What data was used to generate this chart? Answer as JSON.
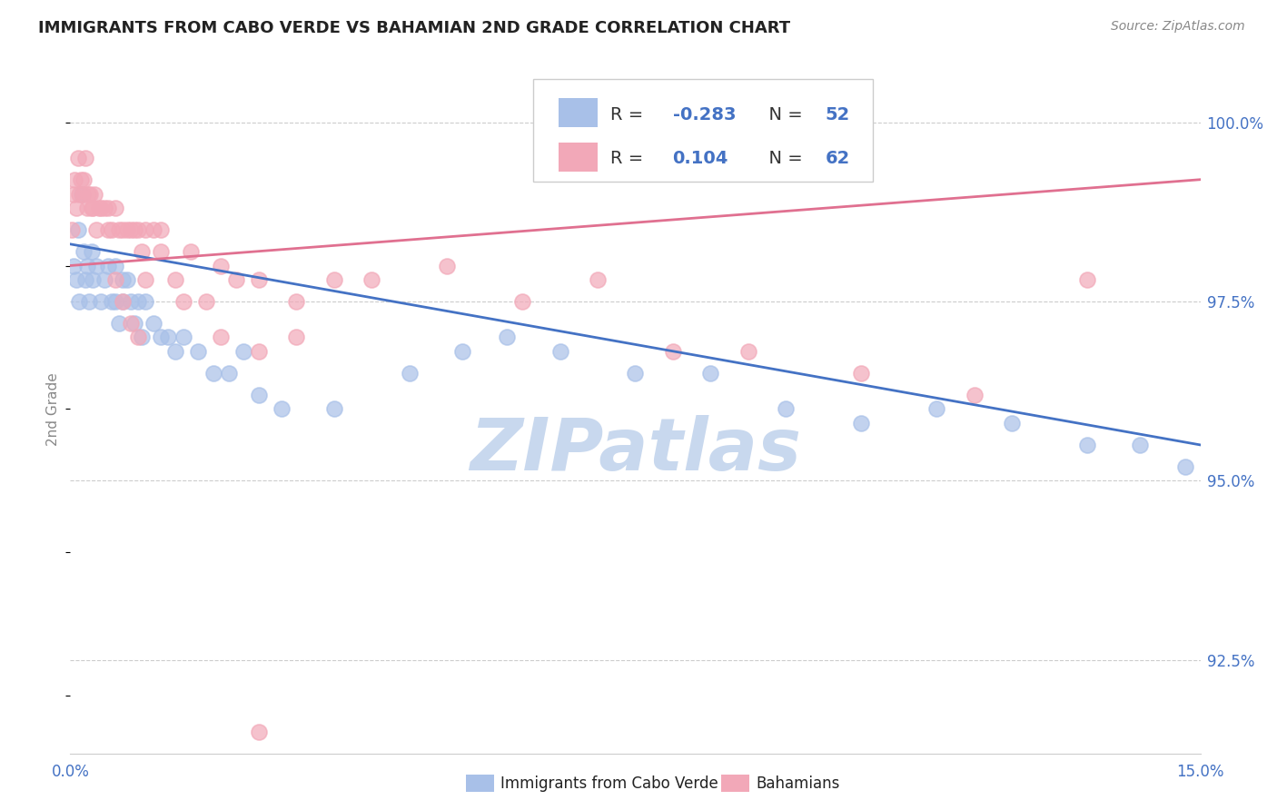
{
  "title": "IMMIGRANTS FROM CABO VERDE VS BAHAMIAN 2ND GRADE CORRELATION CHART",
  "source": "Source: ZipAtlas.com",
  "ylabel": "2nd Grade",
  "yticks": [
    92.5,
    95.0,
    97.5,
    100.0
  ],
  "ytick_labels": [
    "92.5%",
    "95.0%",
    "97.5%",
    "100.0%"
  ],
  "xmin": 0.0,
  "xmax": 15.0,
  "ymin": 91.2,
  "ymax": 100.8,
  "legend_r_blue": "-0.283",
  "legend_n_blue": "52",
  "legend_r_pink": "0.104",
  "legend_n_pink": "62",
  "legend_label_blue": "Immigrants from Cabo Verde",
  "legend_label_pink": "Bahamians",
  "blue_color": "#A8C0E8",
  "pink_color": "#F2A8B8",
  "blue_line_color": "#4472C4",
  "pink_line_color": "#E07090",
  "watermark_color": "#C8D8EE",
  "blue_x": [
    0.05,
    0.08,
    0.1,
    0.12,
    0.15,
    0.18,
    0.2,
    0.22,
    0.25,
    0.28,
    0.3,
    0.35,
    0.4,
    0.45,
    0.5,
    0.55,
    0.6,
    0.65,
    0.7,
    0.75,
    0.8,
    0.85,
    0.9,
    0.95,
    1.0,
    1.1,
    1.2,
    1.3,
    1.4,
    1.5,
    1.7,
    1.9,
    2.1,
    2.3,
    2.5,
    2.8,
    3.5,
    4.5,
    5.2,
    5.8,
    6.5,
    7.5,
    8.5,
    9.5,
    10.5,
    11.5,
    12.5,
    13.5,
    14.2,
    14.8,
    0.6,
    0.7
  ],
  "blue_y": [
    98.0,
    97.8,
    98.5,
    97.5,
    99.0,
    98.2,
    97.8,
    98.0,
    97.5,
    98.2,
    97.8,
    98.0,
    97.5,
    97.8,
    98.0,
    97.5,
    98.0,
    97.2,
    97.5,
    97.8,
    97.5,
    97.2,
    97.5,
    97.0,
    97.5,
    97.2,
    97.0,
    97.0,
    96.8,
    97.0,
    96.8,
    96.5,
    96.5,
    96.8,
    96.2,
    96.0,
    96.0,
    96.5,
    96.8,
    97.0,
    96.8,
    96.5,
    96.5,
    96.0,
    95.8,
    96.0,
    95.8,
    95.5,
    95.5,
    95.2,
    97.5,
    97.8
  ],
  "pink_x": [
    0.02,
    0.04,
    0.06,
    0.08,
    0.1,
    0.12,
    0.14,
    0.16,
    0.18,
    0.2,
    0.22,
    0.24,
    0.26,
    0.28,
    0.3,
    0.32,
    0.35,
    0.38,
    0.4,
    0.45,
    0.5,
    0.55,
    0.6,
    0.65,
    0.7,
    0.75,
    0.8,
    0.85,
    0.9,
    0.95,
    1.0,
    1.1,
    1.2,
    1.4,
    1.6,
    1.8,
    2.0,
    2.2,
    2.5,
    3.0,
    3.5,
    4.0,
    5.0,
    6.0,
    7.0,
    8.0,
    9.0,
    10.5,
    12.0,
    13.5,
    0.5,
    0.6,
    0.7,
    0.8,
    0.9,
    1.0,
    1.2,
    1.5,
    2.0,
    2.5,
    3.0,
    2.5
  ],
  "pink_y": [
    98.5,
    99.0,
    99.2,
    98.8,
    99.5,
    99.0,
    99.2,
    99.0,
    99.2,
    99.5,
    98.8,
    99.0,
    99.0,
    98.8,
    98.8,
    99.0,
    98.5,
    98.8,
    98.8,
    98.8,
    98.8,
    98.5,
    98.8,
    98.5,
    98.5,
    98.5,
    98.5,
    98.5,
    98.5,
    98.2,
    98.5,
    98.5,
    98.5,
    97.8,
    98.2,
    97.5,
    98.0,
    97.8,
    97.8,
    97.5,
    97.8,
    97.8,
    98.0,
    97.5,
    97.8,
    96.8,
    96.8,
    96.5,
    96.2,
    97.8,
    98.5,
    97.8,
    97.5,
    97.2,
    97.0,
    97.8,
    98.2,
    97.5,
    97.0,
    96.8,
    97.0,
    91.5
  ]
}
